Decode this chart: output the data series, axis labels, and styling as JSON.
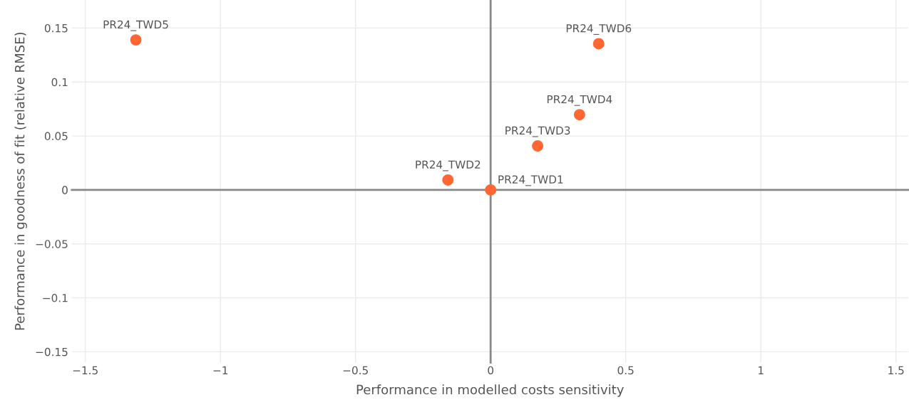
{
  "chart_data": {
    "type": "scatter",
    "xlabel": "Performance in modelled costs sensitivity",
    "ylabel": "Performance in goodness of fit (relative RMSE)",
    "series": [
      {
        "color": "#ff6633",
        "x": [
          -1.313,
          0.4,
          0.329,
          0.174,
          -0.158,
          0
        ],
        "values": [
          0.139,
          0.1355,
          0.0697,
          0.0408,
          0.0092,
          0
        ]
      }
    ],
    "annotations": [
      {
        "text": "PR24_TWD5",
        "x": -1.313,
        "y": 0.139
      },
      {
        "text": "PR24_TWD6",
        "x": 0.4,
        "y": 0.1355
      },
      {
        "text": "PR24_TWD4",
        "x": 0.329,
        "y": 0.0697
      },
      {
        "text": "PR24_TWD3",
        "x": 0.174,
        "y": 0.0408
      },
      {
        "text": "PR24_TWD2",
        "x": -0.158,
        "y": 0.0092
      },
      {
        "text": "PR24_TWD1",
        "x": 0,
        "y": 0
      }
    ],
    "xlim": [
      -1.55,
      1.545
    ],
    "ylim": [
      -0.16,
      0.176
    ],
    "xticks": [
      {
        "value": -1.5,
        "label": "−1.5"
      },
      {
        "value": -1,
        "label": "−1"
      },
      {
        "value": -0.5,
        "label": "−0.5"
      },
      0,
      0.5,
      1,
      1.5
    ],
    "yticks": [
      {
        "value": -0.15,
        "label": "−0.15"
      },
      {
        "value": -0.1,
        "label": "−0.1"
      },
      {
        "value": -0.05,
        "label": "−0.05"
      },
      0,
      0.05,
      0.1,
      0.15
    ],
    "grid": true,
    "marker": "circle"
  }
}
